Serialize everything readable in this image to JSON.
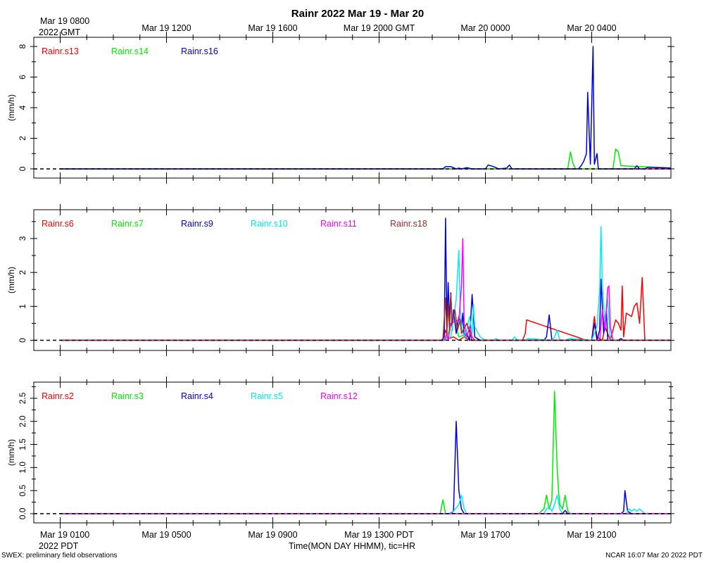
{
  "title": "Rainr 2022 Mar 19 - Mar 20",
  "top_axis": {
    "start_line1": "Mar 19 0800",
    "start_line2": "2022 GMT",
    "labels": [
      "Mar 19 1200",
      "Mar 19 1600",
      "Mar 19 2000 GMT",
      "Mar 20 0000",
      "Mar 20 0400"
    ]
  },
  "bottom_axis": {
    "start_line1": "Mar 19 0100",
    "start_line2": "2022 PDT",
    "labels": [
      "Mar 19 0500",
      "Mar 19 0900",
      "Mar 19 1300 PDT",
      "Mar 19 1700",
      "Mar 19 2100"
    ],
    "xlabel": "Time(MON DAY HHMM), tic=HR"
  },
  "footer": {
    "left": "SWEX: preliminary field observations",
    "right": "NCAR 16:07 Mar 20 2022 PDT"
  },
  "chart_data": [
    {
      "type": "line",
      "xunit": "hours since Mar 19 0000 PDT",
      "xlim": [
        0,
        24
      ],
      "ylabel": "(mm/h)",
      "ylim": [
        -0.6,
        8.6
      ],
      "yticks": [
        0,
        2,
        4,
        6,
        8
      ],
      "ytick_labels": [
        "0",
        "2",
        "4",
        "6",
        "8"
      ],
      "reference_line": 0,
      "series": [
        {
          "name": "Rainr.s13",
          "color": "#ff0000",
          "x": [
            0,
            24
          ],
          "y": [
            0,
            0
          ]
        },
        {
          "name": "Rainr.s14",
          "color": "#00ee00",
          "x": [
            0,
            19.1,
            19.2,
            19.3,
            19.4,
            20.8,
            20.9,
            21.0,
            21.1,
            24
          ],
          "y": [
            0,
            0,
            1.1,
            0.3,
            0,
            0,
            1.3,
            1.1,
            0.2,
            0
          ]
        },
        {
          "name": "Rainr.s16",
          "color": "#0000dd",
          "x": [
            0,
            14.4,
            14.5,
            14.7,
            14.9,
            15.0,
            15.1,
            15.3,
            15.5,
            15.6,
            16.0,
            16.1,
            16.3,
            16.5,
            16.8,
            16.9,
            17.0,
            17.3,
            19.5,
            19.6,
            19.7,
            19.8,
            19.85,
            19.95,
            20.05,
            20.1,
            20.2,
            20.25,
            20.3,
            21.6,
            21.7,
            21.8,
            22.0,
            22.1,
            24
          ],
          "y": [
            0,
            0,
            0.15,
            0.15,
            0,
            0.05,
            0,
            0.08,
            0,
            0,
            0,
            0.25,
            0.15,
            0,
            0.05,
            0.25,
            0,
            0,
            0,
            0.2,
            0.5,
            1.0,
            5.0,
            0.3,
            8.0,
            0.3,
            1.0,
            0,
            0,
            0,
            0.2,
            0,
            0,
            0.1,
            0
          ]
        }
      ],
      "legend_placement": "top-left"
    },
    {
      "type": "line",
      "xunit": "hours since Mar 19 0000 PDT",
      "xlim": [
        0,
        24
      ],
      "ylabel": "(mm/h)",
      "ylim": [
        -0.3,
        3.85
      ],
      "yticks": [
        0,
        1,
        2,
        3
      ],
      "ytick_labels": [
        "0",
        "1",
        "2",
        "3"
      ],
      "reference_line": 0,
      "series": [
        {
          "name": "Rainr.s6",
          "color": "#ff0000",
          "x": [
            0,
            14.4,
            14.5,
            14.6,
            14.8,
            15.0,
            15.2,
            15.4,
            17.3,
            17.4,
            17.5,
            17.55,
            19.8,
            20.0,
            20.1,
            20.2,
            20.4,
            20.5,
            20.7,
            20.9,
            21.0,
            21.1,
            21.15,
            21.2,
            21.3,
            21.5,
            21.6,
            21.7,
            21.8,
            21.9,
            22.0,
            22.1,
            24
          ],
          "y": [
            0,
            0,
            0.3,
            0.05,
            0.1,
            0,
            0.1,
            0,
            0,
            0,
            0.2,
            0.6,
            0,
            0,
            0.7,
            0.1,
            0,
            0.4,
            0,
            0.6,
            0.5,
            0.3,
            1.6,
            0.1,
            0.8,
            0.7,
            1.0,
            1.1,
            0.5,
            1.85,
            0,
            0,
            0
          ]
        },
        {
          "name": "Rainr.s7",
          "color": "#00ee00",
          "x": [
            0,
            14.5,
            14.6,
            14.8,
            15.0,
            15.2,
            15.5,
            24
          ],
          "y": [
            0,
            0,
            0.2,
            0.7,
            0.1,
            0.15,
            0,
            0
          ]
        },
        {
          "name": "Rainr.s9",
          "color": "#0000dd",
          "x": [
            0,
            14.35,
            14.45,
            14.5,
            14.55,
            14.6,
            14.65,
            14.7,
            14.75,
            14.8,
            14.9,
            15.0,
            15.1,
            15.15,
            15.2,
            15.3,
            15.4,
            15.5,
            15.6,
            15.7,
            15.8,
            18.2,
            18.3,
            18.4,
            18.5,
            19.0,
            19.2,
            19.3,
            19.5,
            20.0,
            20.1,
            20.2,
            20.3,
            20.35,
            20.45,
            20.55,
            20.6,
            21.0,
            21.1,
            21.2,
            24
          ],
          "y": [
            0,
            0,
            0.1,
            3.6,
            0.4,
            1.7,
            0.6,
            1.4,
            0.3,
            0.9,
            0.2,
            0.7,
            0.4,
            0.8,
            0.1,
            0.2,
            0,
            1.35,
            0.1,
            0.05,
            0,
            0,
            0.1,
            0.75,
            0,
            0,
            0.05,
            0,
            0,
            0,
            0.5,
            0,
            0.3,
            1.8,
            0.2,
            0.9,
            0,
            0,
            0.05,
            0,
            0
          ]
        },
        {
          "name": "Rainr.s10",
          "color": "#00eeee",
          "x": [
            0,
            14.4,
            14.7,
            14.9,
            15.0,
            15.05,
            15.1,
            15.2,
            15.3,
            15.4,
            15.5,
            15.55,
            15.6,
            15.8,
            16.0,
            16.3,
            16.4,
            16.5,
            17.0,
            17.1,
            17.2,
            17.5,
            17.6,
            18.5,
            18.6,
            18.7,
            18.8,
            19.0,
            19.2,
            20.0,
            20.2,
            20.3,
            20.35,
            20.4,
            20.5,
            20.6,
            20.7,
            24
          ],
          "y": [
            0,
            0,
            0.1,
            1.2,
            2.65,
            1.0,
            0.4,
            0.1,
            0.3,
            0.7,
            0.2,
            1.05,
            0.4,
            0.1,
            0,
            0,
            0.05,
            0,
            0,
            0.1,
            0,
            0,
            0.05,
            0,
            0.1,
            0.3,
            0,
            0,
            0.05,
            0,
            0.4,
            1.5,
            3.35,
            1.6,
            0.5,
            1.2,
            0,
            0
          ]
        },
        {
          "name": "Rainr.s11",
          "color": "#ff00ff",
          "x": [
            0,
            14.45,
            14.55,
            14.6,
            14.7,
            15.0,
            15.1,
            15.15,
            15.2,
            15.3,
            15.4,
            15.5,
            15.6,
            15.8,
            20.3,
            20.4,
            20.5,
            20.6,
            20.65,
            20.7,
            20.8,
            24
          ],
          "y": [
            0,
            0,
            0.2,
            0,
            0.5,
            0.6,
            1.6,
            3.0,
            0.5,
            0.1,
            0.4,
            0.1,
            0,
            0,
            0,
            0.9,
            0.3,
            1.55,
            1.6,
            0.4,
            0,
            0
          ]
        },
        {
          "name": "Rainr.s18",
          "color": "#a52a2a",
          "x": [
            0,
            14.4,
            14.5,
            14.55,
            14.6,
            14.65,
            14.7,
            14.75,
            14.85,
            14.95,
            15.05,
            15.1,
            15.3,
            15.5,
            15.8,
            24
          ],
          "y": [
            0,
            0,
            1.25,
            0.2,
            1.1,
            0.3,
            1.35,
            0.5,
            0.9,
            0.3,
            0.6,
            0.2,
            0.5,
            0,
            0,
            0
          ]
        }
      ],
      "legend_placement": "top-left"
    },
    {
      "type": "line",
      "xunit": "hours since Mar 19 0000 PDT",
      "xlim": [
        0,
        24
      ],
      "ylabel": "(mm/h)",
      "ylim": [
        -0.2,
        2.85
      ],
      "yticks": [
        0,
        0.5,
        1,
        1.5,
        2,
        2.5
      ],
      "ytick_labels": [
        "0.0",
        "0.5",
        "1.0",
        "1.5",
        "2.0",
        "2.5"
      ],
      "reference_line": 0,
      "series": [
        {
          "name": "Rainr.s2",
          "color": "#ff0000",
          "x": [
            0,
            24
          ],
          "y": [
            0,
            0
          ]
        },
        {
          "name": "Rainr.s3",
          "color": "#00ee00",
          "x": [
            0,
            14.3,
            14.4,
            14.5,
            14.6,
            18.0,
            18.2,
            18.3,
            18.4,
            18.5,
            18.6,
            18.7,
            18.75,
            18.8,
            18.9,
            19.0,
            19.1,
            19.2,
            24
          ],
          "y": [
            0,
            0,
            0.3,
            0,
            0,
            0,
            0.1,
            0.4,
            0.1,
            0.3,
            2.65,
            1.0,
            0.5,
            0.2,
            0.1,
            0.4,
            0.05,
            0,
            0
          ]
        },
        {
          "name": "Rainr.s4",
          "color": "#0000dd",
          "x": [
            0,
            14.7,
            14.8,
            14.9,
            15.0,
            15.1,
            15.2,
            18.9,
            19.0,
            19.1,
            21.1,
            21.2,
            21.25,
            21.35,
            21.5,
            24
          ],
          "y": [
            0,
            0,
            0.05,
            2.0,
            0.5,
            0.1,
            0,
            0,
            0.07,
            0,
            0,
            0.05,
            0.5,
            0.05,
            0,
            0
          ]
        },
        {
          "name": "Rainr.s5",
          "color": "#00eeee",
          "x": [
            0,
            14.6,
            14.8,
            15.0,
            15.1,
            15.2,
            15.3,
            18.2,
            18.3,
            18.4,
            18.5,
            18.6,
            18.7,
            18.8,
            18.9,
            21.3,
            21.4,
            21.5,
            21.6,
            21.7,
            21.8,
            21.9,
            22.0,
            24
          ],
          "y": [
            0,
            0,
            0.05,
            0.2,
            0.4,
            0.1,
            0,
            0,
            0.1,
            0.15,
            0.05,
            0.2,
            0.4,
            0.1,
            0,
            0,
            0.1,
            0.05,
            0.1,
            0.05,
            0.1,
            0.05,
            0,
            0
          ]
        },
        {
          "name": "Rainr.s12",
          "color": "#ff00ff",
          "x": [
            0,
            24
          ],
          "y": [
            0,
            0
          ]
        }
      ],
      "legend_placement": "top-left"
    }
  ]
}
